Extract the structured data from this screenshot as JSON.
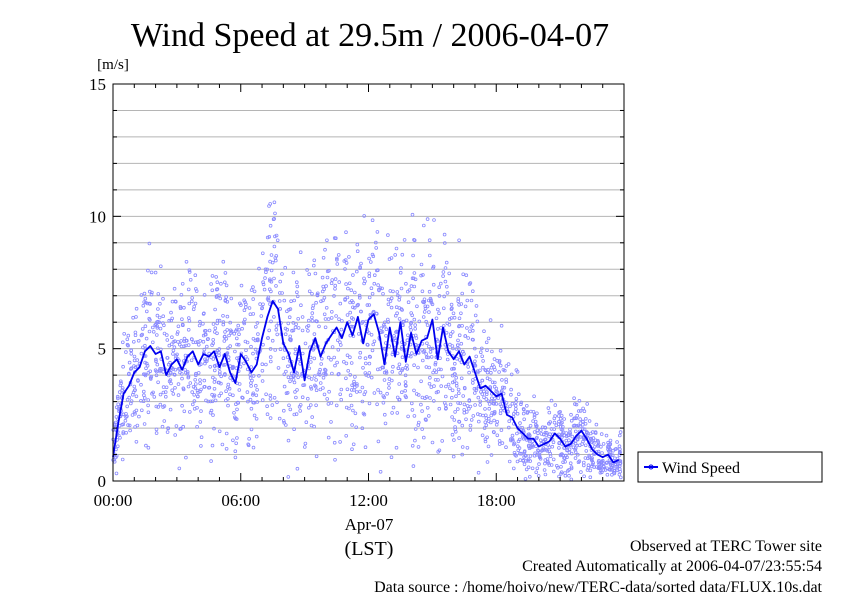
{
  "chart_data": {
    "type": "scatter",
    "title": "Wind Speed at 29.5m / 2006-04-07",
    "ylabel": "[m/s]",
    "xlabel_date": "Apr-07",
    "xlabel_tz": "(LST)",
    "ylim": [
      0,
      15
    ],
    "xlim_hours": [
      0,
      24
    ],
    "y_ticks": [
      {
        "v": 0,
        "label": "0"
      },
      {
        "v": 5,
        "label": "5"
      },
      {
        "v": 10,
        "label": "10"
      },
      {
        "v": 15,
        "label": "15"
      }
    ],
    "x_ticks": [
      {
        "v": 0,
        "label": "00:00"
      },
      {
        "v": 6,
        "label": "06:00"
      },
      {
        "v": 12,
        "label": "12:00"
      },
      {
        "v": 18,
        "label": "18:00"
      }
    ],
    "grid": true,
    "legend": {
      "placement": "right",
      "entries": [
        "Wind Speed"
      ]
    },
    "colors": {
      "line": "#0000ee",
      "points": "#8a8aff"
    },
    "series": [
      {
        "name": "Wind Speed",
        "x": [
          0.0,
          0.25,
          0.5,
          0.75,
          1.0,
          1.25,
          1.5,
          1.75,
          2.0,
          2.25,
          2.5,
          2.75,
          3.0,
          3.25,
          3.5,
          3.75,
          4.0,
          4.25,
          4.5,
          4.75,
          5.0,
          5.25,
          5.5,
          5.75,
          6.0,
          6.25,
          6.5,
          6.75,
          7.0,
          7.25,
          7.5,
          7.75,
          8.0,
          8.25,
          8.5,
          8.75,
          9.0,
          9.25,
          9.5,
          9.75,
          10.0,
          10.25,
          10.5,
          10.75,
          11.0,
          11.25,
          11.5,
          11.75,
          12.0,
          12.25,
          12.5,
          12.75,
          13.0,
          13.25,
          13.5,
          13.75,
          14.0,
          14.25,
          14.5,
          14.75,
          15.0,
          15.25,
          15.5,
          15.75,
          16.0,
          16.25,
          16.5,
          16.75,
          17.0,
          17.25,
          17.5,
          17.75,
          18.0,
          18.25,
          18.5,
          18.75,
          19.0,
          19.25,
          19.5,
          19.75,
          20.0,
          20.25,
          20.5,
          20.75,
          21.0,
          21.25,
          21.5,
          21.75,
          22.0,
          22.25,
          22.5,
          22.75,
          23.0,
          23.25,
          23.5,
          23.75
        ],
        "values": [
          0.9,
          2.2,
          3.3,
          3.6,
          4.1,
          4.3,
          4.9,
          5.1,
          4.8,
          4.9,
          4.0,
          4.4,
          4.6,
          4.2,
          4.7,
          4.9,
          4.4,
          4.8,
          4.7,
          4.9,
          4.3,
          4.8,
          4.1,
          3.7,
          4.8,
          4.5,
          4.1,
          4.4,
          5.4,
          6.2,
          6.8,
          6.5,
          5.2,
          4.8,
          4.1,
          5.1,
          3.8,
          4.9,
          5.4,
          4.7,
          5.2,
          5.5,
          5.8,
          5.4,
          6.0,
          5.5,
          6.2,
          5.2,
          6.1,
          6.3,
          5.6,
          4.4,
          5.8,
          4.7,
          6.0,
          4.5,
          5.6,
          4.8,
          5.3,
          5.4,
          6.1,
          4.6,
          5.8,
          4.9,
          4.6,
          4.9,
          4.4,
          4.7,
          4.1,
          3.5,
          3.6,
          3.4,
          3.2,
          3.3,
          2.5,
          2.4,
          2.0,
          1.8,
          1.6,
          1.6,
          1.3,
          1.4,
          1.5,
          1.8,
          1.6,
          1.3,
          1.4,
          1.7,
          1.9,
          1.6,
          1.2,
          1.0,
          0.9,
          1.0,
          0.7,
          0.8
        ]
      }
    ]
  },
  "footer": {
    "observed": "Observed at TERC Tower site",
    "created": "Created Automatically at 2006-04-07/23:55:54",
    "source": "Data source : /home/hoivo/new/TERC-data/sorted  data/FLUX.10s.dat"
  }
}
